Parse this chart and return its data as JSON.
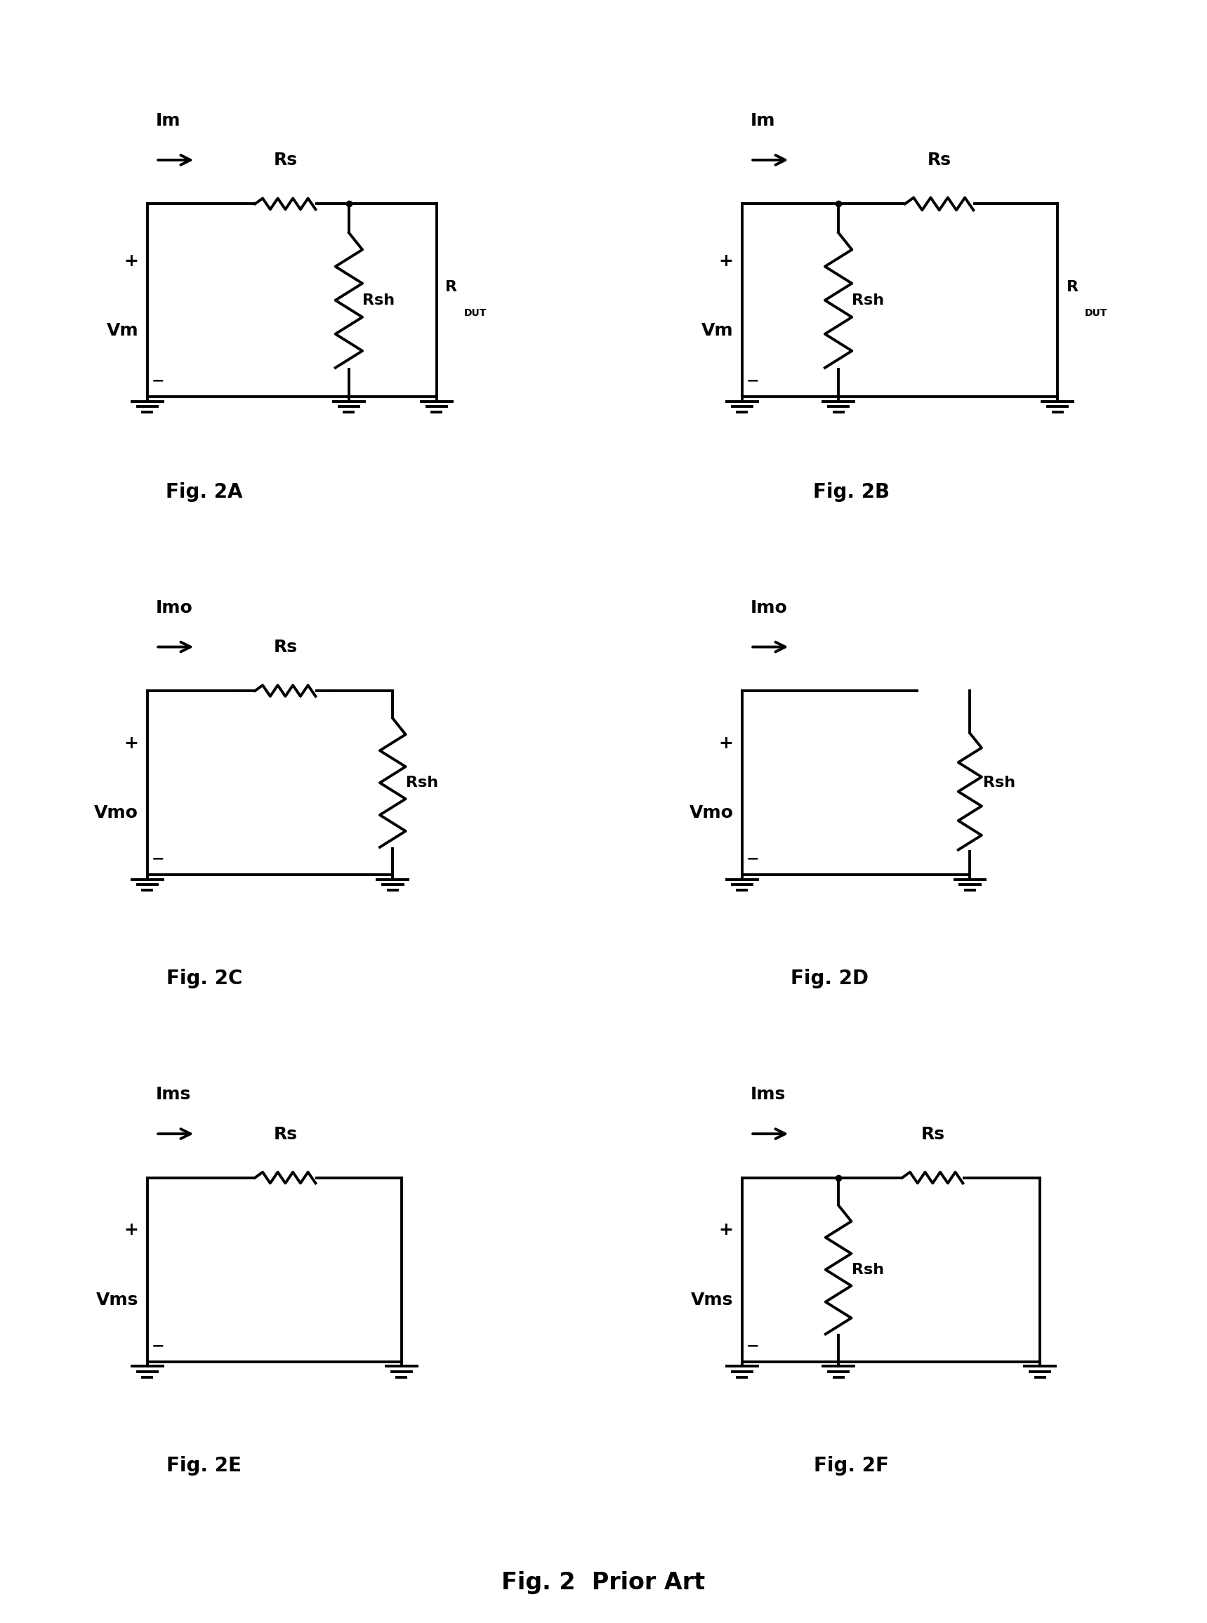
{
  "title": "Fig. 2  Prior Art",
  "figures": [
    "Fig. 2A",
    "Fig. 2B",
    "Fig. 2C",
    "Fig. 2D",
    "Fig. 2E",
    "Fig. 2F"
  ],
  "bg_color": "#ffffff",
  "line_color": "#000000",
  "line_width": 2.8,
  "font_size_label": 18,
  "font_size_sublabel": 14,
  "font_size_caption": 22,
  "font_size_main_title": 24,
  "zigzag_n": 4
}
